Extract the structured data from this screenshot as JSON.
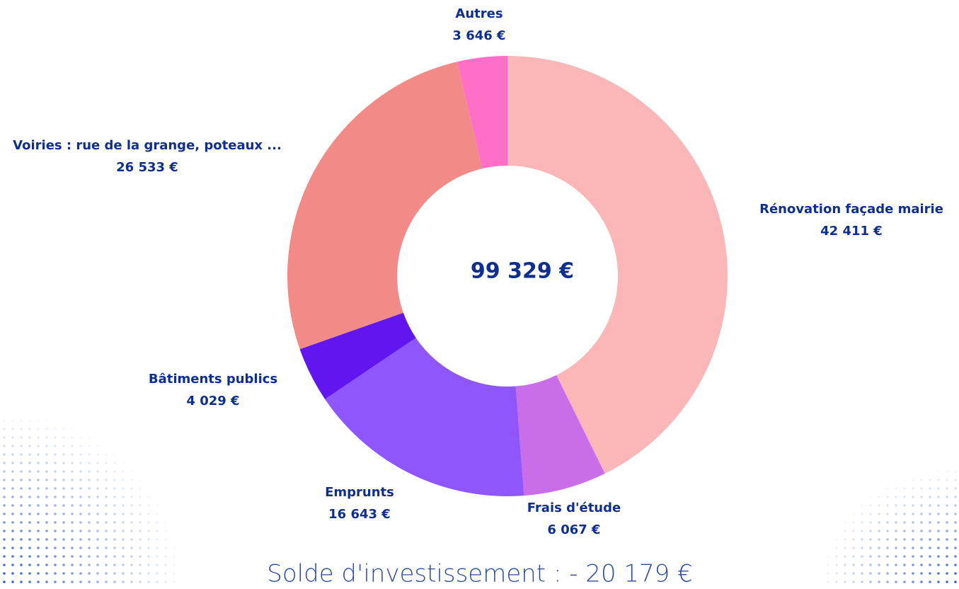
{
  "chart_data": {
    "type": "donut",
    "categories": [
      "Rénovation façade mairie",
      "Frais d'étude",
      "Emprunts",
      "Bâtiments publics",
      "Voiries : rue de la grange, poteaux ...",
      "Autres"
    ],
    "values": [
      42411,
      6067,
      16643,
      4029,
      26533,
      3646
    ],
    "value_labels": [
      "42 411 €",
      "6 067 €",
      "16 643 €",
      "4 029 €",
      "26 533 €",
      "3 646 €"
    ],
    "colors": [
      "#fbb6b8",
      "#c96ee8",
      "#8f57fb",
      "#6216ef",
      "#f28a87",
      "#ff6ec7"
    ],
    "center_label": "99 329 €",
    "footer": "Solde d'investissement : - 20 179 €"
  }
}
